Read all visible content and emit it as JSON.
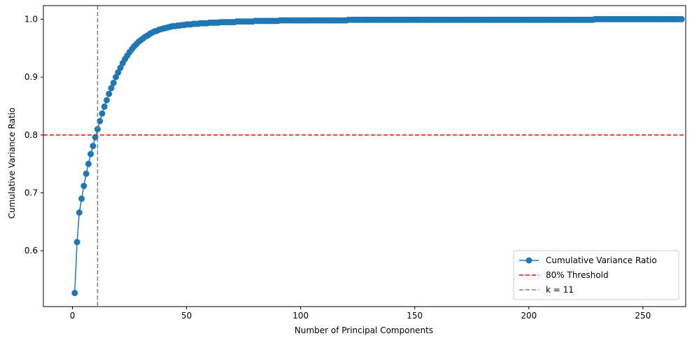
{
  "chart_data": {
    "type": "line",
    "title": "",
    "xlabel": "Number of Principal Components",
    "ylabel": "Cumulative Variance Ratio",
    "xlim": [
      -12.75,
      268.75
    ],
    "ylim": [
      0.5035,
      1.0235
    ],
    "xticks": [
      0,
      50,
      100,
      150,
      200,
      250
    ],
    "yticks": [
      0.6,
      0.7,
      0.8,
      0.9,
      1.0
    ],
    "ytick_labels": [
      "0.6",
      "0.7",
      "0.8",
      "0.9",
      "1.0"
    ],
    "grid": false,
    "legend_position": "lower right",
    "series": [
      {
        "name": "Cumulative Variance Ratio",
        "color": "#1f77b4",
        "marker": "circle",
        "x_start": 1,
        "x_end": 256,
        "values": [
          0.527,
          0.615,
          0.666,
          0.69,
          0.712,
          0.733,
          0.75,
          0.767,
          0.781,
          0.796,
          0.81,
          0.824,
          0.837,
          0.849,
          0.86,
          0.871,
          0.881,
          0.89,
          0.9,
          0.908,
          0.916,
          0.924,
          0.931,
          0.937,
          0.943,
          0.948,
          0.953,
          0.957,
          0.961,
          0.964,
          0.967,
          0.97,
          0.972,
          0.975,
          0.977,
          0.979,
          0.98,
          0.982,
          0.983,
          0.984,
          0.985,
          0.986,
          0.987,
          0.988,
          0.988,
          0.989,
          0.989,
          0.99,
          0.99,
          0.991,
          0.991,
          0.991,
          0.992,
          0.992,
          0.992,
          0.993,
          0.993,
          0.993,
          0.993,
          0.994,
          0.994,
          0.994,
          0.994,
          0.994,
          0.995,
          0.995,
          0.995,
          0.995,
          0.995,
          0.995,
          0.995,
          0.996,
          0.996,
          0.996,
          0.996,
          0.996,
          0.996,
          0.996,
          0.996,
          0.997,
          0.997,
          0.997,
          0.997,
          0.997,
          0.997,
          0.997,
          0.997,
          0.997,
          0.997,
          0.997,
          0.998,
          0.998,
          0.998,
          0.998,
          0.998,
          0.998,
          0.998,
          0.998,
          0.998,
          0.998,
          0.998,
          0.998,
          0.998,
          0.998,
          0.998,
          0.998,
          0.998,
          0.998,
          0.998,
          0.998,
          0.998,
          0.998,
          0.998,
          0.998,
          0.998,
          0.998,
          0.998,
          0.998,
          0.998,
          0.998,
          0.999,
          0.999,
          0.999,
          0.999,
          0.999,
          0.999,
          0.999,
          0.999,
          0.999,
          0.999,
          0.999,
          0.999,
          0.999,
          0.999,
          0.999,
          0.999,
          0.999,
          0.999,
          0.999,
          0.999,
          0.999,
          0.999,
          0.999,
          0.999,
          0.999,
          0.999,
          0.999,
          0.999,
          0.999,
          0.999,
          0.999,
          0.999,
          0.999,
          0.999,
          0.999,
          0.999,
          0.999,
          0.999,
          0.999,
          0.999,
          0.999,
          0.999,
          0.999,
          0.999,
          0.999,
          0.999,
          0.999,
          0.999,
          0.999,
          0.999,
          0.999,
          0.999,
          0.999,
          0.999,
          0.999,
          0.999,
          0.999,
          0.999,
          0.999,
          0.999,
          0.999,
          0.999,
          0.999,
          0.999,
          0.999,
          0.999,
          0.999,
          0.999,
          0.999,
          0.999,
          0.999,
          0.999,
          0.999,
          0.999,
          0.999,
          0.999,
          0.999,
          0.999,
          0.999,
          0.999,
          0.999,
          0.999,
          0.999,
          0.999,
          0.999,
          0.999,
          0.999,
          0.999,
          0.999,
          0.999,
          0.999,
          0.999,
          0.999,
          0.999,
          0.999,
          0.999,
          0.999,
          0.999,
          0.999,
          0.999,
          0.999,
          0.999,
          0.999,
          0.999,
          0.999,
          0.999,
          0.999,
          0.999,
          1.0,
          1.0,
          1.0,
          1.0,
          1.0,
          1.0,
          1.0,
          1.0,
          1.0,
          1.0,
          1.0,
          1.0,
          1.0,
          1.0,
          1.0,
          1.0,
          1.0,
          1.0,
          1.0,
          1.0,
          1.0,
          1.0,
          1.0,
          1.0,
          1.0,
          1.0,
          1.0,
          1.0,
          1.0,
          1.0,
          1.0,
          1.0,
          1.0,
          1.0,
          1.0,
          1.0,
          1.0,
          1.0,
          1.0
        ]
      }
    ],
    "reference_lines": [
      {
        "name": "80% Threshold",
        "orientation": "horizontal",
        "value": 0.8,
        "color": "#ff0000",
        "style": "dashed"
      },
      {
        "name": "k = 11",
        "orientation": "vertical",
        "value": 11,
        "color": "#808080",
        "style": "dashed"
      }
    ]
  }
}
